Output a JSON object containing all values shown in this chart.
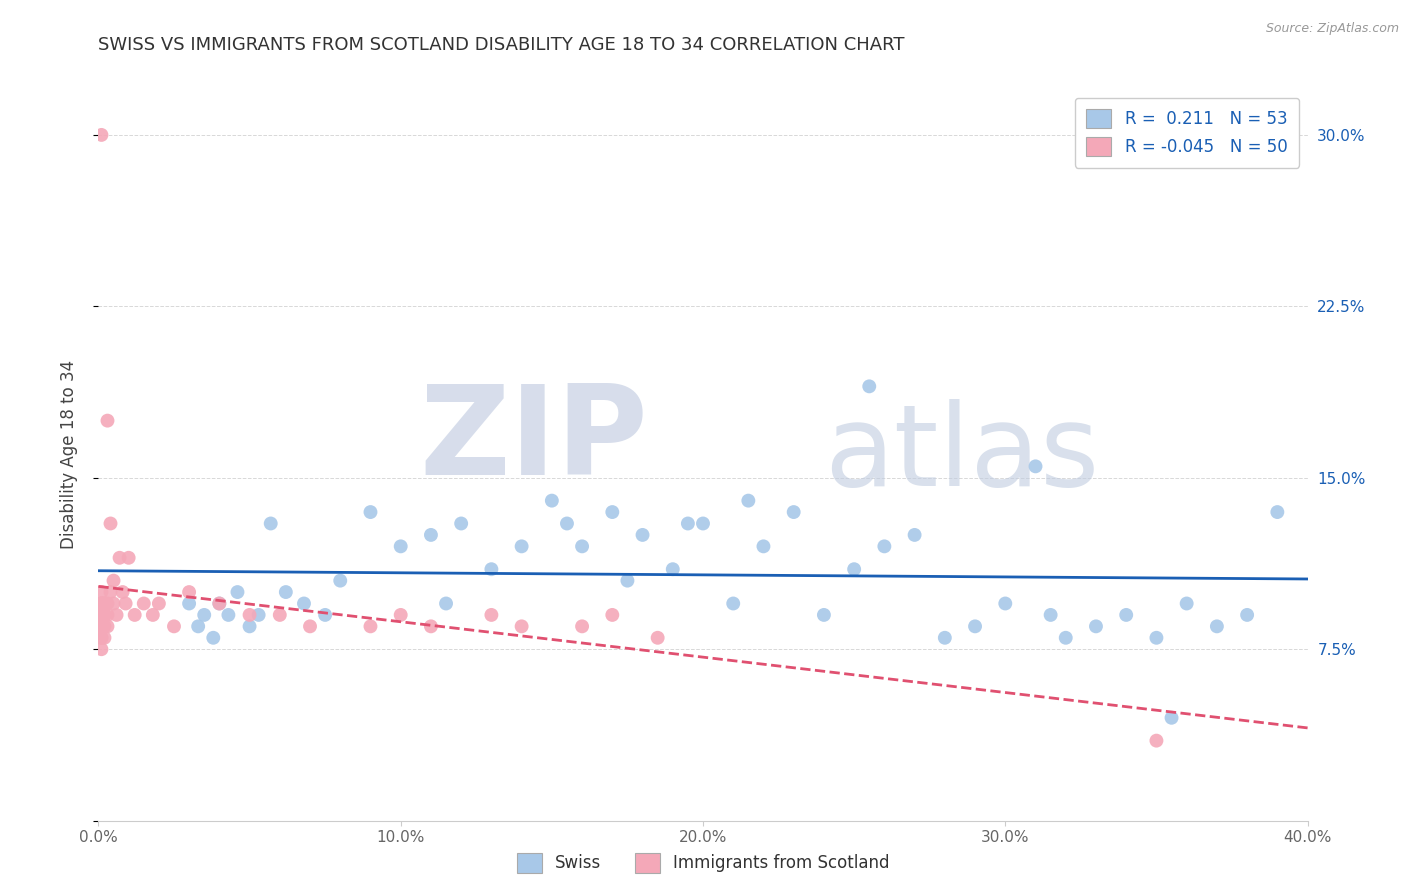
{
  "title": "SWISS VS IMMIGRANTS FROM SCOTLAND DISABILITY AGE 18 TO 34 CORRELATION CHART",
  "source": "Source: ZipAtlas.com",
  "ylabel": "Disability Age 18 to 34",
  "xlim": [
    0.0,
    0.4
  ],
  "ylim": [
    0.0,
    0.32
  ],
  "xticks": [
    0.0,
    0.1,
    0.2,
    0.3,
    0.4
  ],
  "xticklabels": [
    "0.0%",
    "10.0%",
    "20.0%",
    "30.0%",
    "40.0%"
  ],
  "yticks": [
    0.0,
    0.075,
    0.15,
    0.225,
    0.3
  ],
  "yticklabels": [
    "",
    "7.5%",
    "15.0%",
    "22.5%",
    "30.0%"
  ],
  "legend_R_swiss": " 0.211",
  "legend_N_swiss": "53",
  "legend_R_scotland": "-0.045",
  "legend_N_scotland": "50",
  "swiss_color": "#a8c8e8",
  "scotland_color": "#f4a8b8",
  "swiss_line_color": "#1a5fb4",
  "scotland_line_color": "#e05070",
  "background_color": "#ffffff",
  "grid_color": "#d8d8d8",
  "swiss_x": [
    0.03,
    0.033,
    0.035,
    0.038,
    0.04,
    0.043,
    0.046,
    0.05,
    0.053,
    0.057,
    0.062,
    0.068,
    0.075,
    0.08,
    0.09,
    0.1,
    0.11,
    0.115,
    0.12,
    0.13,
    0.14,
    0.15,
    0.155,
    0.16,
    0.17,
    0.175,
    0.18,
    0.19,
    0.195,
    0.2,
    0.21,
    0.215,
    0.22,
    0.23,
    0.24,
    0.25,
    0.255,
    0.26,
    0.27,
    0.28,
    0.29,
    0.3,
    0.31,
    0.315,
    0.32,
    0.33,
    0.34,
    0.35,
    0.355,
    0.36,
    0.37,
    0.38,
    0.39
  ],
  "swiss_y": [
    0.095,
    0.085,
    0.09,
    0.08,
    0.095,
    0.09,
    0.1,
    0.085,
    0.09,
    0.13,
    0.1,
    0.095,
    0.09,
    0.105,
    0.135,
    0.12,
    0.125,
    0.095,
    0.13,
    0.11,
    0.12,
    0.14,
    0.13,
    0.12,
    0.135,
    0.105,
    0.125,
    0.11,
    0.13,
    0.13,
    0.095,
    0.14,
    0.12,
    0.135,
    0.09,
    0.11,
    0.19,
    0.12,
    0.125,
    0.08,
    0.085,
    0.095,
    0.155,
    0.09,
    0.08,
    0.085,
    0.09,
    0.08,
    0.045,
    0.095,
    0.085,
    0.09,
    0.135
  ],
  "scotland_x": [
    0.001,
    0.001,
    0.001,
    0.001,
    0.001,
    0.001,
    0.001,
    0.001,
    0.001,
    0.001,
    0.001,
    0.001,
    0.002,
    0.002,
    0.002,
    0.002,
    0.002,
    0.002,
    0.003,
    0.003,
    0.003,
    0.003,
    0.004,
    0.004,
    0.005,
    0.005,
    0.006,
    0.007,
    0.008,
    0.009,
    0.01,
    0.012,
    0.015,
    0.018,
    0.02,
    0.025,
    0.03,
    0.04,
    0.05,
    0.06,
    0.07,
    0.09,
    0.1,
    0.11,
    0.13,
    0.14,
    0.16,
    0.17,
    0.185,
    0.35
  ],
  "scotland_y": [
    0.3,
    0.085,
    0.09,
    0.095,
    0.08,
    0.075,
    0.095,
    0.09,
    0.085,
    0.1,
    0.095,
    0.08,
    0.09,
    0.085,
    0.095,
    0.08,
    0.095,
    0.09,
    0.175,
    0.095,
    0.09,
    0.085,
    0.13,
    0.1,
    0.105,
    0.095,
    0.09,
    0.115,
    0.1,
    0.095,
    0.115,
    0.09,
    0.095,
    0.09,
    0.095,
    0.085,
    0.1,
    0.095,
    0.09,
    0.09,
    0.085,
    0.085,
    0.09,
    0.085,
    0.09,
    0.085,
    0.085,
    0.09,
    0.08,
    0.035
  ]
}
